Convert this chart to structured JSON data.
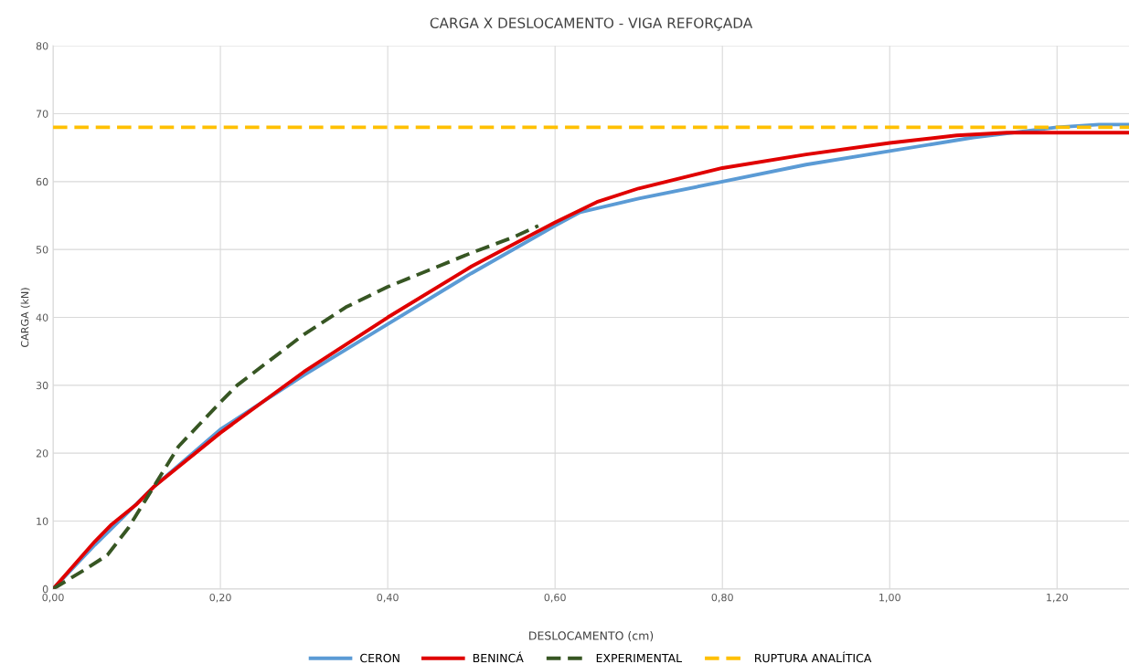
{
  "chart_data": {
    "type": "line",
    "title": "CARGA X DESLOCAMENTO - VIGA REFORÇADA",
    "xlabel": "DESLOCAMENTO (cm)",
    "ylabel": "CARGA (kN)",
    "xlim": [
      0,
      1.286
    ],
    "xticks": [
      {
        "value": 0,
        "label": "0,00"
      },
      {
        "value": 0.2,
        "label": "0,20"
      },
      {
        "value": 0.4,
        "label": "0,40"
      },
      {
        "value": 0.6,
        "label": "0,60"
      },
      {
        "value": 0.8,
        "label": "0,80"
      },
      {
        "value": 1.0,
        "label": "1,00"
      },
      {
        "value": 1.2,
        "label": "1,20"
      }
    ],
    "ylim": [
      0,
      80
    ],
    "yticks": [
      0,
      10,
      20,
      30,
      40,
      50,
      60,
      70,
      80
    ],
    "grid": true,
    "legend": "bottom",
    "marker": "none",
    "series": [
      {
        "name": "CERON",
        "color": "#5b9bd5",
        "line_style": "solid",
        "x": [
          0,
          0.05,
          0.12,
          0.2,
          0.3,
          0.4,
          0.5,
          0.6,
          0.63,
          0.7,
          0.8,
          0.9,
          1.0,
          1.1,
          1.2,
          1.25,
          1.286
        ],
        "values": [
          0,
          6.5,
          15,
          23.5,
          31.5,
          39,
          46.5,
          53.5,
          55.5,
          57.5,
          60,
          62.5,
          64.5,
          66.5,
          68,
          68.4,
          68.4
        ]
      },
      {
        "name": "BENINCÁ",
        "color": "#e00000",
        "line_style": "solid",
        "x": [
          0,
          0.05,
          0.07,
          0.1,
          0.12,
          0.2,
          0.3,
          0.4,
          0.5,
          0.6,
          0.65,
          0.7,
          0.8,
          0.9,
          1.0,
          1.08,
          1.14,
          1.286
        ],
        "values": [
          0,
          7,
          9.5,
          12.5,
          15,
          23,
          32,
          40,
          47.5,
          54,
          57,
          59,
          62,
          64,
          65.7,
          66.8,
          67.2,
          67.2
        ]
      },
      {
        "name": "EXPERIMENTAL",
        "color": "#375623",
        "line_style": "dashed",
        "x": [
          0,
          0.04,
          0.065,
          0.09,
          0.12,
          0.15,
          0.2,
          0.22,
          0.3,
          0.35,
          0.4,
          0.45,
          0.5,
          0.55,
          0.58
        ],
        "values": [
          0,
          3,
          5,
          9,
          15,
          21,
          27.5,
          30,
          37.5,
          41.5,
          44.5,
          47,
          49.5,
          51.8,
          53.5
        ]
      },
      {
        "name": "RUPTURA ANALÍTICA",
        "color": "#ffc000",
        "line_style": "dashed",
        "x": [
          0,
          1.286
        ],
        "values": [
          68,
          68
        ]
      }
    ]
  }
}
